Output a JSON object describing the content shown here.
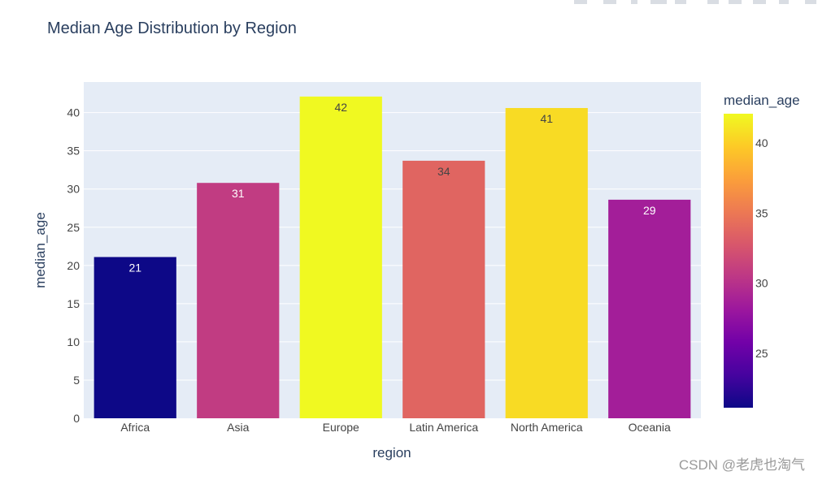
{
  "chart_data": {
    "type": "bar",
    "title": "Median Age Distribution by Region",
    "xlabel": "region",
    "ylabel": "median_age",
    "categories": [
      "Africa",
      "Asia",
      "Europe",
      "Latin America",
      "North America",
      "Oceania"
    ],
    "values": [
      21.1,
      30.8,
      42.1,
      33.7,
      40.6,
      28.6
    ],
    "data_labels": [
      "21",
      "31",
      "42",
      "34",
      "41",
      "29"
    ],
    "ylim": [
      0,
      44
    ],
    "yticks": [
      0,
      5,
      10,
      15,
      20,
      25,
      30,
      35,
      40
    ],
    "grid": true,
    "plot_background": "#e5ecf6",
    "colorbar": {
      "title": "median_age",
      "range": [
        21.1,
        42.1
      ],
      "ticks": [
        25,
        30,
        35,
        40
      ],
      "colorscale": [
        "#0d0887",
        "#46039f",
        "#7201a8",
        "#9c179e",
        "#bd3786",
        "#d8576b",
        "#ed7953",
        "#fb9f3a",
        "#fdca26",
        "#f0f921"
      ]
    }
  },
  "watermark": "CSDN @老虎也淘气"
}
